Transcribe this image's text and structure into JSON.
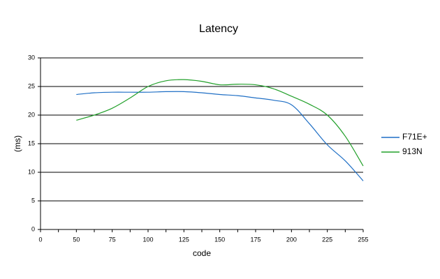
{
  "chart_data": {
    "type": "line",
    "title": "Latency",
    "x_label": "code",
    "y_label": "(ms)",
    "categories": [
      "0",
      null,
      "50",
      null,
      "75",
      null,
      "100",
      null,
      "125",
      null,
      "150",
      null,
      "175",
      null,
      "200",
      null,
      "225",
      null,
      "255"
    ],
    "series": [
      {
        "name": "F71E+",
        "color": "#1f6fc5",
        "values": [
          null,
          null,
          23.6,
          23.9,
          24.0,
          24.0,
          24.0,
          24.1,
          24.1,
          23.9,
          23.6,
          23.4,
          23.0,
          22.6,
          21.8,
          18.5,
          14.8,
          12.0,
          8.5
        ]
      },
      {
        "name": "913N",
        "color": "#22a02a",
        "values": [
          null,
          null,
          19.1,
          20.0,
          21.2,
          23.0,
          25.0,
          26.0,
          26.2,
          25.9,
          25.3,
          25.4,
          25.3,
          24.6,
          23.3,
          21.9,
          20.0,
          16.3,
          11.1
        ]
      }
    ],
    "ylim": [
      0,
      30
    ],
    "yticks": [
      0,
      5,
      10,
      15,
      20,
      25,
      30
    ],
    "grid": true,
    "legend": "right"
  }
}
